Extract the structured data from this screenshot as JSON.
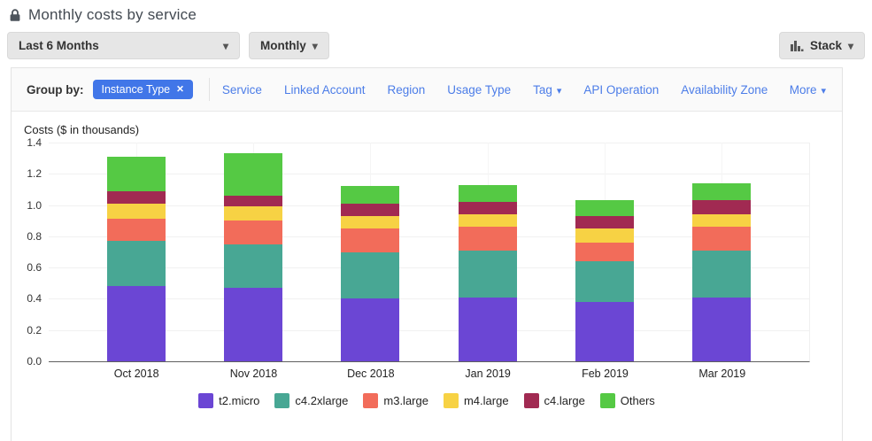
{
  "icons": {
    "caret_down": "▾",
    "close": "✕"
  },
  "header": {
    "title": "Monthly costs by service"
  },
  "toolbar": {
    "date_range": {
      "label": "Last 6 Months"
    },
    "granularity": {
      "label": "Monthly"
    },
    "chart_type": {
      "label": "Stack"
    }
  },
  "group_by": {
    "label": "Group by:",
    "selected": [
      {
        "label": "Instance Type"
      }
    ],
    "options": [
      {
        "label": "Service",
        "caret": false
      },
      {
        "label": "Linked Account",
        "caret": false
      },
      {
        "label": "Region",
        "caret": false
      },
      {
        "label": "Usage Type",
        "caret": false
      },
      {
        "label": "Tag",
        "caret": true
      },
      {
        "label": "API Operation",
        "caret": false
      },
      {
        "label": "Availability Zone",
        "caret": false
      }
    ],
    "more": {
      "label": "More",
      "caret": true
    }
  },
  "chart_data": {
    "type": "bar",
    "stacked": true,
    "title": "Costs ($ in thousands)",
    "categories": [
      "Oct 2018",
      "Nov 2018",
      "Dec 2018",
      "Jan 2019",
      "Feb 2019",
      "Mar 2019"
    ],
    "series": [
      {
        "name": "t2.micro",
        "color": "#6b46d4",
        "values": [
          0.48,
          0.47,
          0.4,
          0.41,
          0.38,
          0.41
        ]
      },
      {
        "name": "c4.2xlarge",
        "color": "#48a794",
        "values": [
          0.29,
          0.28,
          0.3,
          0.3,
          0.26,
          0.3
        ]
      },
      {
        "name": "m3.large",
        "color": "#f26c5a",
        "values": [
          0.14,
          0.15,
          0.15,
          0.15,
          0.12,
          0.15
        ]
      },
      {
        "name": "m4.large",
        "color": "#f7d244",
        "values": [
          0.1,
          0.09,
          0.08,
          0.08,
          0.09,
          0.08
        ]
      },
      {
        "name": "c4.large",
        "color": "#a12a52",
        "values": [
          0.08,
          0.07,
          0.08,
          0.08,
          0.08,
          0.09
        ]
      },
      {
        "name": "Others",
        "color": "#55c944",
        "values": [
          0.22,
          0.27,
          0.11,
          0.11,
          0.1,
          0.11
        ]
      }
    ],
    "totals": [
      1.31,
      1.33,
      1.12,
      1.13,
      1.03,
      1.14
    ],
    "ylim": [
      0,
      1.4
    ],
    "yticks": [
      0.0,
      0.2,
      0.4,
      0.6,
      0.8,
      1.0,
      1.2,
      1.4
    ],
    "grid": true,
    "legend_position": "bottom"
  }
}
